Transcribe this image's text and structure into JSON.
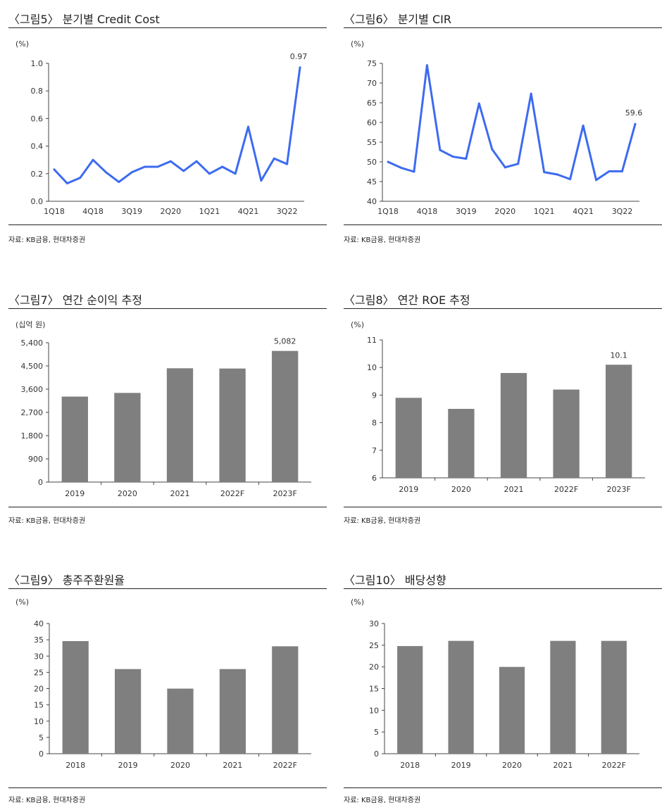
{
  "charts": [
    {
      "title": "〈그림5〉 분기별 Credit Cost",
      "source": "자료: KB금융, 현대차증권",
      "chart_data": {
        "type": "line",
        "unit_label": "(%)",
        "categories": [
          "1Q18",
          "2Q18",
          "3Q18",
          "4Q18",
          "1Q19",
          "2Q19",
          "3Q19",
          "4Q19",
          "1Q20",
          "2Q20",
          "3Q20",
          "4Q20",
          "1Q21",
          "2Q21",
          "3Q21",
          "4Q21",
          "1Q22",
          "2Q22",
          "3Q22",
          "4Q22"
        ],
        "x_tick_labels": [
          "1Q18",
          "4Q18",
          "3Q19",
          "2Q20",
          "1Q21",
          "4Q21",
          "3Q22"
        ],
        "y_ticks": [
          "0.0",
          "0.2",
          "0.4",
          "0.6",
          "0.8",
          "1.0"
        ],
        "ylim": [
          0,
          1.0
        ],
        "series": [
          {
            "values": [
              0.23,
              0.13,
              0.17,
              0.3,
              0.21,
              0.14,
              0.21,
              0.25,
              0.25,
              0.29,
              0.22,
              0.29,
              0.2,
              0.25,
              0.2,
              0.54,
              0.15,
              0.31,
              0.27,
              0.97
            ]
          }
        ],
        "annotation": {
          "text": "0.97",
          "index": 19
        },
        "color": "#3d6bf0"
      }
    },
    {
      "title": "〈그림6〉 분기별 CIR",
      "source": "자료: KB금융, 현대차증권",
      "chart_data": {
        "type": "line",
        "unit_label": "(%)",
        "categories": [
          "1Q18",
          "2Q18",
          "3Q18",
          "4Q18",
          "1Q19",
          "2Q19",
          "3Q19",
          "4Q19",
          "1Q20",
          "2Q20",
          "3Q20",
          "4Q20",
          "1Q21",
          "2Q21",
          "3Q21",
          "4Q21",
          "1Q22",
          "2Q22",
          "3Q22",
          "4Q22"
        ],
        "x_tick_labels": [
          "1Q18",
          "4Q18",
          "3Q19",
          "2Q20",
          "1Q21",
          "4Q21",
          "3Q22"
        ],
        "y_ticks": [
          "40",
          "45",
          "50",
          "55",
          "60",
          "65",
          "70",
          "75"
        ],
        "ylim": [
          40,
          75
        ],
        "series": [
          {
            "values": [
              50.0,
              48.5,
              47.5,
              74.5,
              53.0,
              51.3,
              50.8,
              64.8,
              53.2,
              48.6,
              49.5,
              67.3,
              47.4,
              46.8,
              45.6,
              59.2,
              45.4,
              47.6,
              47.6,
              59.6
            ]
          }
        ],
        "annotation": {
          "text": "59.6",
          "index": 19
        },
        "color": "#3d6bf0"
      }
    },
    {
      "title": "〈그림7〉 연간 순이익 추정",
      "source": "자료: KB금융, 현대차증권",
      "chart_data": {
        "type": "bar",
        "unit_label": "(십억 원)",
        "categories": [
          "2019",
          "2020",
          "2021",
          "2022F",
          "2023F"
        ],
        "y_ticks": [
          "0",
          "900",
          "1,800",
          "2,700",
          "3,600",
          "4,500",
          "5,400"
        ],
        "ylim": [
          0,
          5400
        ],
        "values": [
          3312,
          3455,
          4410,
          4400,
          5082
        ],
        "annotation": {
          "text": "5,082",
          "index": 4
        },
        "color": "#7f7f7f"
      }
    },
    {
      "title": "〈그림8〉 연간 ROE 추정",
      "source": "자료: KB금융, 현대차증권",
      "chart_data": {
        "type": "bar",
        "unit_label": "(%)",
        "categories": [
          "2019",
          "2020",
          "2021",
          "2022F",
          "2023F"
        ],
        "y_ticks": [
          "6",
          "7",
          "8",
          "9",
          "10",
          "11"
        ],
        "ylim": [
          6,
          11
        ],
        "values": [
          8.9,
          8.5,
          9.8,
          9.2,
          10.1
        ],
        "annotation": {
          "text": "10.1",
          "index": 4
        },
        "color": "#7f7f7f"
      }
    },
    {
      "title": "〈그림9〉 총주주환원율",
      "source": "자료: KB금융, 현대차증권",
      "chart_data": {
        "type": "bar",
        "unit_label": "(%)",
        "categories": [
          "2018",
          "2019",
          "2020",
          "2021",
          "2022F"
        ],
        "y_ticks": [
          "0",
          "5",
          "10",
          "15",
          "20",
          "25",
          "30",
          "35",
          "40"
        ],
        "ylim": [
          0,
          40
        ],
        "values": [
          34.6,
          26.0,
          20.0,
          26.0,
          33.0
        ],
        "color": "#7f7f7f"
      }
    },
    {
      "title": "〈그림10〉 배당성향",
      "source": "자료: KB금융, 현대차증권",
      "chart_data": {
        "type": "bar",
        "unit_label": "(%)",
        "categories": [
          "2018",
          "2019",
          "2020",
          "2021",
          "2022F"
        ],
        "y_ticks": [
          "0",
          "5",
          "10",
          "15",
          "20",
          "25",
          "30"
        ],
        "ylim": [
          0,
          30
        ],
        "values": [
          24.8,
          26.0,
          20.0,
          26.0,
          26.0
        ],
        "color": "#7f7f7f"
      }
    }
  ]
}
